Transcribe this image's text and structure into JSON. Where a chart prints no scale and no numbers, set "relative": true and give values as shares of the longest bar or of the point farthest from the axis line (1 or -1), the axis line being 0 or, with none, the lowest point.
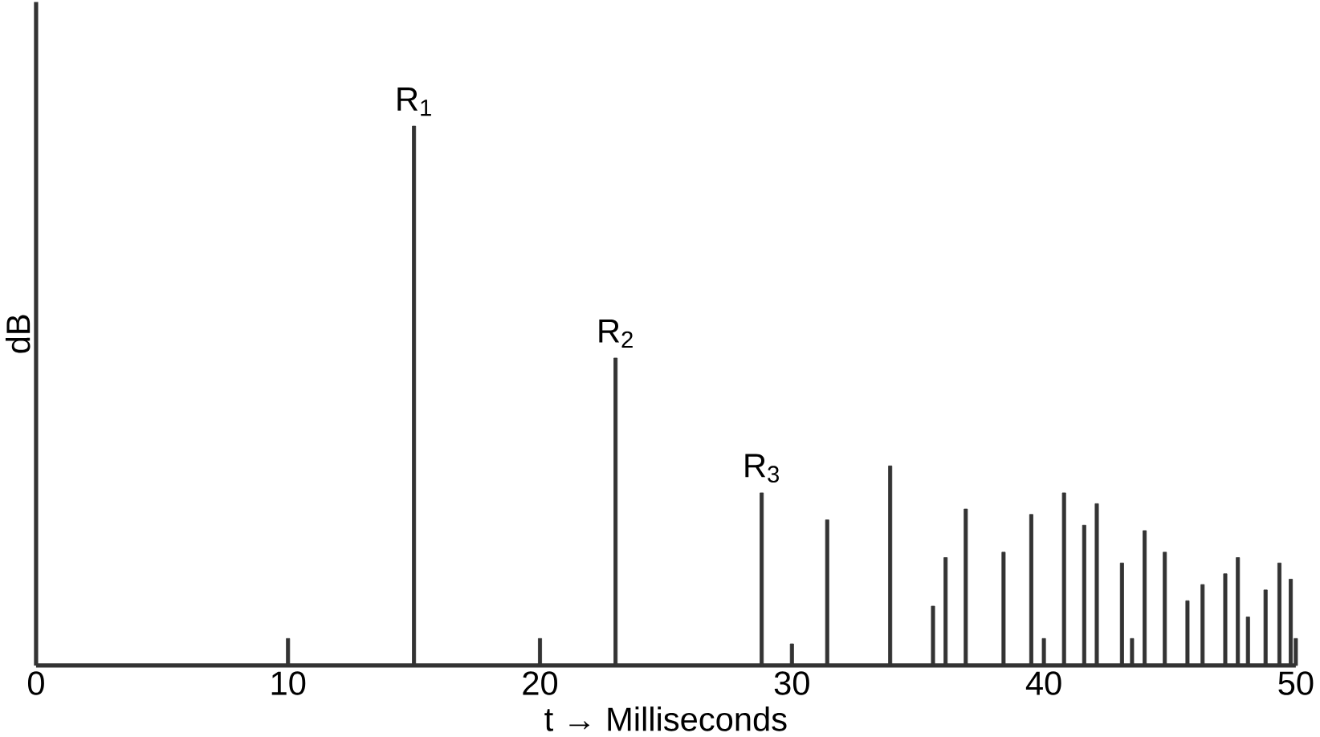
{
  "chart_data": {
    "type": "bar",
    "relative": true,
    "xlabel": "t → Milliseconds",
    "ylabel": "dB",
    "x": [
      10,
      15,
      20,
      23,
      28.8,
      30,
      31.4,
      33.9,
      35.6,
      36.1,
      36.9,
      38.4,
      39.5,
      40,
      40.8,
      41.6,
      42.1,
      43.1,
      43.5,
      44,
      44.8,
      45.7,
      46.3,
      47.2,
      47.7,
      48.1,
      48.8,
      49.35,
      49.8,
      50
    ],
    "values": [
      0.05,
      1,
      0.05,
      0.57,
      0.32,
      0.04,
      0.27,
      0.37,
      0.11,
      0.2,
      0.29,
      0.21,
      0.28,
      0.05,
      0.32,
      0.26,
      0.3,
      0.19,
      0.05,
      0.25,
      0.21,
      0.12,
      0.15,
      0.17,
      0.2,
      0.09,
      0.14,
      0.19,
      0.16,
      0.05
    ],
    "color": "#333333",
    "xlim": [
      0,
      50
    ],
    "xticks": [
      0,
      10,
      20,
      30,
      40,
      50
    ],
    "annotations": [
      {
        "text": "R$_{1}$",
        "x": 15,
        "y": 1
      },
      {
        "text": "R$_{2}$",
        "x": 23,
        "y": 0.57
      },
      {
        "text": "R$_{3}$",
        "x": 28.8,
        "y": 0.32
      }
    ]
  }
}
